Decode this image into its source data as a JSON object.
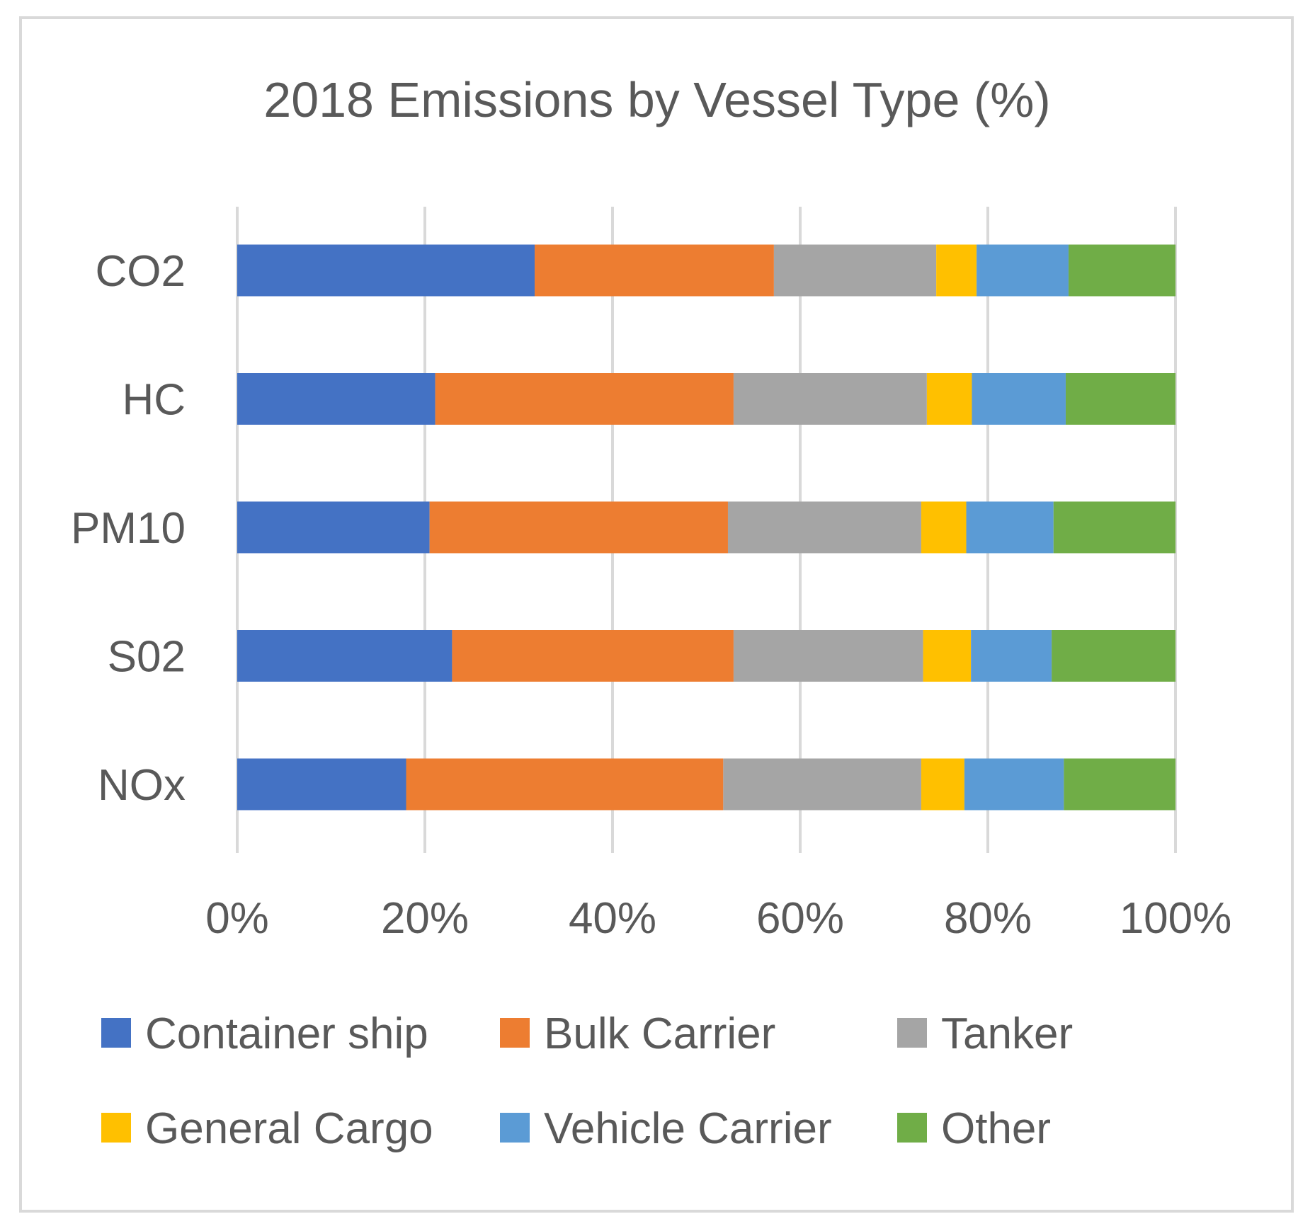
{
  "chart_data": {
    "type": "bar",
    "orientation": "horizontal",
    "stacked": "percent",
    "title": "2018 Emissions by Vessel Type (%)",
    "xlabel": "",
    "ylabel": "",
    "xlim": [
      0,
      100
    ],
    "x_ticks": [
      "0%",
      "20%",
      "40%",
      "60%",
      "80%",
      "100%"
    ],
    "grid": true,
    "legend_position": "bottom",
    "categories": [
      "CO2",
      "HC",
      "PM10",
      "S02",
      "NOx"
    ],
    "series": [
      {
        "name": "Container ship",
        "color": "#4472C4",
        "values": [
          31.7,
          21.1,
          20.5,
          22.9,
          18.0
        ]
      },
      {
        "name": "Bulk Carrier",
        "color": "#ED7D31",
        "values": [
          25.5,
          31.8,
          31.8,
          30.0,
          33.8
        ]
      },
      {
        "name": "Tanker",
        "color": "#A5A5A5",
        "values": [
          17.3,
          20.6,
          20.6,
          20.2,
          21.1
        ]
      },
      {
        "name": "General Cargo",
        "color": "#FFC000",
        "values": [
          4.3,
          4.8,
          4.8,
          5.1,
          4.6
        ]
      },
      {
        "name": "Vehicle Carrier",
        "color": "#5B9BD5",
        "values": [
          9.8,
          10.0,
          9.3,
          8.6,
          10.6
        ]
      },
      {
        "name": "Other",
        "color": "#70AD47",
        "values": [
          11.4,
          11.7,
          13.0,
          13.2,
          11.9
        ]
      }
    ]
  }
}
